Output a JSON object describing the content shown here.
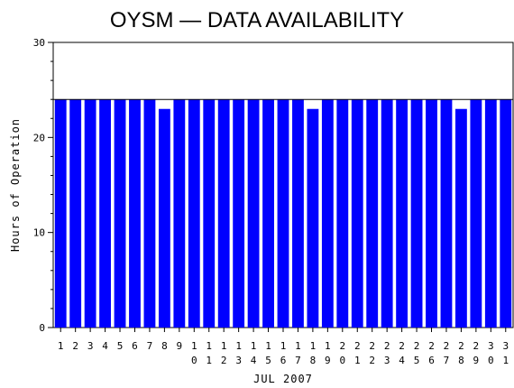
{
  "chart_data": {
    "type": "bar",
    "title": "OYSM — DATA AVAILABILITY",
    "xlabel": "JUL 2007",
    "ylabel": "Hours of Operation",
    "ylim": [
      0,
      30
    ],
    "yticks": [
      "0",
      "10",
      "20",
      "30"
    ],
    "categories": [
      "1",
      "2",
      "3",
      "4",
      "5",
      "6",
      "7",
      "8",
      "9",
      "10",
      "11",
      "12",
      "13",
      "14",
      "15",
      "16",
      "17",
      "18",
      "19",
      "20",
      "21",
      "22",
      "23",
      "24",
      "25",
      "26",
      "27",
      "28",
      "29",
      "30",
      "31"
    ],
    "values": [
      24,
      24,
      24,
      24,
      24,
      24,
      24,
      23,
      24,
      24,
      24,
      24,
      24,
      24,
      24,
      24,
      24,
      23,
      24,
      24,
      24,
      24,
      24,
      24,
      24,
      24,
      24,
      23,
      24,
      24,
      24
    ],
    "reference_line": 24,
    "grid": false,
    "legend": "none",
    "bar_color": "#0000ff"
  }
}
